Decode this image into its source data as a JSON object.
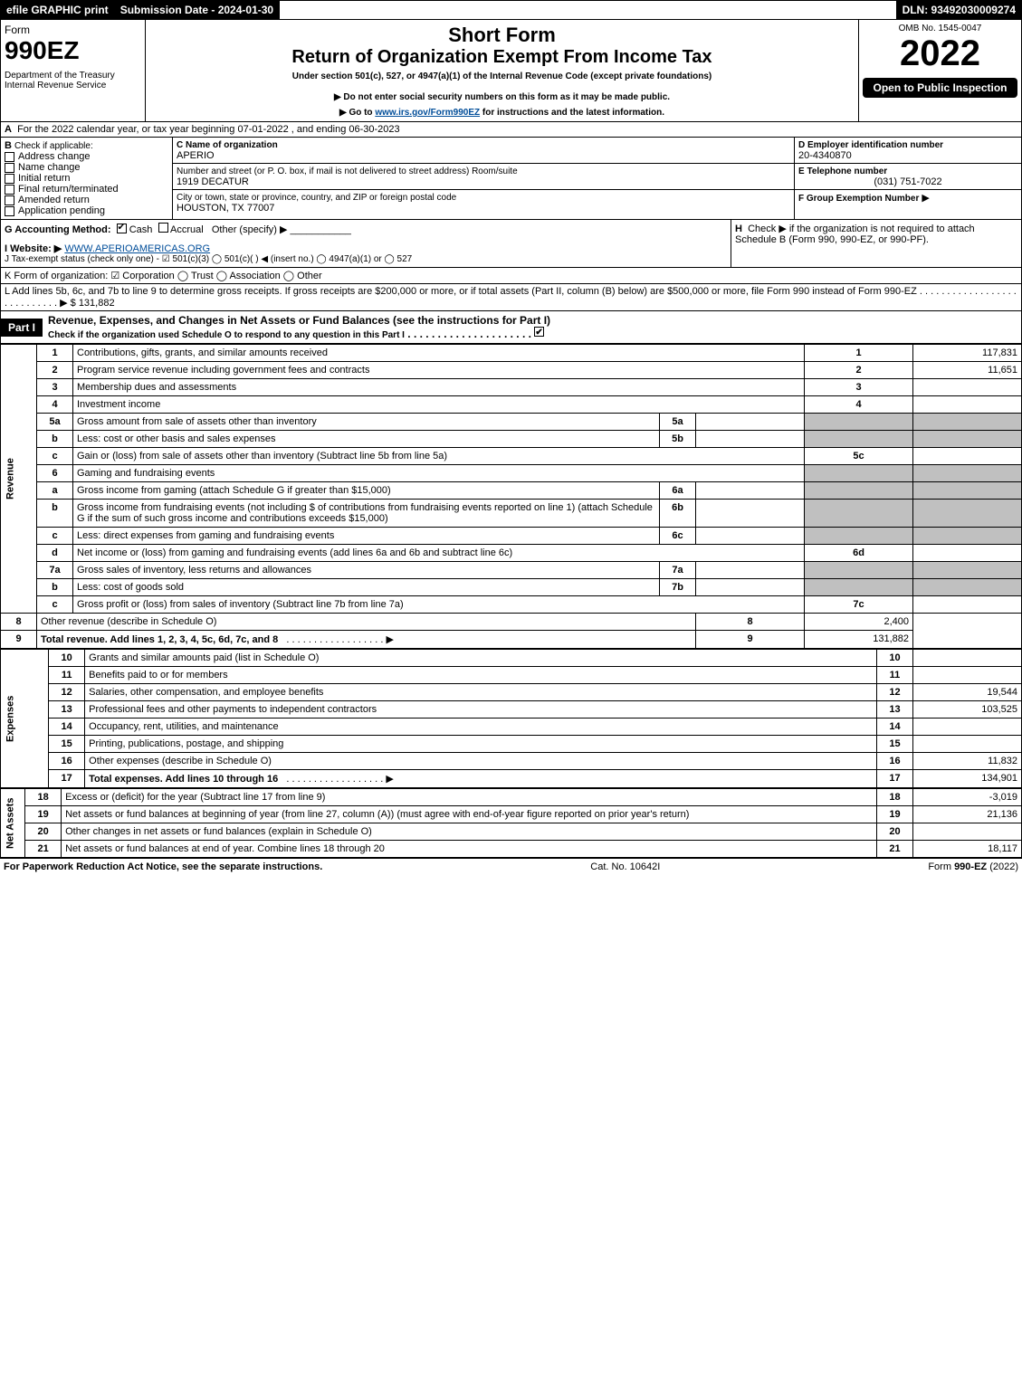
{
  "tophdr": {
    "efile": "efile GRAPHIC print",
    "subdate_label": "Submission Date - 2024-01-30",
    "dln": "DLN: 93492030009274"
  },
  "formhead": {
    "form_word": "Form",
    "form_no": "990EZ",
    "dept": "Department of the Treasury",
    "irs": "Internal Revenue Service",
    "title1": "Short Form",
    "title2": "Return of Organization Exempt From Income Tax",
    "subtitle": "Under section 501(c), 527, or 4947(a)(1) of the Internal Revenue Code (except private foundations)",
    "note1": "Do not enter social security numbers on this form as it may be made public.",
    "note2_pre": "Go to ",
    "note2_link": "www.irs.gov/Form990EZ",
    "note2_post": " for instructions and the latest information.",
    "omb": "OMB No. 1545-0047",
    "year": "2022",
    "open": "Open to Public Inspection"
  },
  "A": {
    "text": "For the 2022 calendar year, or tax year beginning 07-01-2022 , and ending 06-30-2023"
  },
  "B": {
    "label": "Check if applicable:",
    "opts": [
      "Address change",
      "Name change",
      "Initial return",
      "Final return/terminated",
      "Amended return",
      "Application pending"
    ]
  },
  "C": {
    "name_lbl": "C Name of organization",
    "name": "APERIO",
    "addr_lbl": "Number and street (or P. O. box, if mail is not delivered to street address)     Room/suite",
    "addr": "1919 DECATUR",
    "city_lbl": "City or town, state or province, country, and ZIP or foreign postal code",
    "city": "HOUSTON, TX  77007"
  },
  "DEF": {
    "d_lbl": "D Employer identification number",
    "d": "20-4340870",
    "e_lbl": "E Telephone number",
    "e": "(031) 751-7022",
    "f_lbl": "F Group Exemption Number",
    "f_arrow": "▶"
  },
  "G": {
    "lbl": "G Accounting Method:",
    "cash": "Cash",
    "accrual": "Accrual",
    "other": "Other (specify)"
  },
  "H": {
    "txt": "Check ▶      if the organization is not required to attach Schedule B (Form 990, 990-EZ, or 990-PF)."
  },
  "I": {
    "lbl": "I Website: ▶",
    "val": "WWW.APERIOAMERICAS.ORG"
  },
  "J": {
    "txt": "J Tax-exempt status (check only one) -  ☑ 501(c)(3)  ◯ 501(c)(  ) ◀ (insert no.)  ◯ 4947(a)(1) or  ◯ 527"
  },
  "K": {
    "txt": "K Form of organization:   ☑ Corporation   ◯ Trust   ◯ Association   ◯ Other"
  },
  "L": {
    "txt": "L Add lines 5b, 6c, and 7b to line 9 to determine gross receipts. If gross receipts are $200,000 or more, or if total assets (Part II, column (B) below) are $500,000 or more, file Form 990 instead of Form 990-EZ",
    "amt": "$ 131,882"
  },
  "part1": {
    "hdr": "Part I",
    "title": "Revenue, Expenses, and Changes in Net Assets or Fund Balances (see the instructions for Part I)",
    "sub": "Check if the organization used Schedule O to respond to any question in this Part I"
  },
  "sidelabels": {
    "rev": "Revenue",
    "exp": "Expenses",
    "na": "Net Assets"
  },
  "lines": [
    {
      "n": "1",
      "d": "Contributions, gifts, grants, and similar amounts received",
      "l": "1",
      "a": "117,831"
    },
    {
      "n": "2",
      "d": "Program service revenue including government fees and contracts",
      "l": "2",
      "a": "11,651"
    },
    {
      "n": "3",
      "d": "Membership dues and assessments",
      "l": "3",
      "a": ""
    },
    {
      "n": "4",
      "d": "Investment income",
      "l": "4",
      "a": ""
    },
    {
      "n": "5a",
      "d": "Gross amount from sale of assets other than inventory",
      "sl": "5a",
      "sa": ""
    },
    {
      "n": "b",
      "d": "Less: cost or other basis and sales expenses",
      "sl": "5b",
      "sa": ""
    },
    {
      "n": "c",
      "d": "Gain or (loss) from sale of assets other than inventory (Subtract line 5b from line 5a)",
      "l": "5c",
      "a": ""
    },
    {
      "n": "6",
      "d": "Gaming and fundraising events"
    },
    {
      "n": "a",
      "d": "Gross income from gaming (attach Schedule G if greater than $15,000)",
      "sl": "6a",
      "sa": ""
    },
    {
      "n": "b",
      "d": "Gross income from fundraising events (not including $                  of contributions from fundraising events reported on line 1) (attach Schedule G if the sum of such gross income and contributions exceeds $15,000)",
      "sl": "6b",
      "sa": ""
    },
    {
      "n": "c",
      "d": "Less: direct expenses from gaming and fundraising events",
      "sl": "6c",
      "sa": ""
    },
    {
      "n": "d",
      "d": "Net income or (loss) from gaming and fundraising events (add lines 6a and 6b and subtract line 6c)",
      "l": "6d",
      "a": ""
    },
    {
      "n": "7a",
      "d": "Gross sales of inventory, less returns and allowances",
      "sl": "7a",
      "sa": ""
    },
    {
      "n": "b",
      "d": "Less: cost of goods sold",
      "sl": "7b",
      "sa": ""
    },
    {
      "n": "c",
      "d": "Gross profit or (loss) from sales of inventory (Subtract line 7b from line 7a)",
      "l": "7c",
      "a": ""
    },
    {
      "n": "8",
      "d": "Other revenue (describe in Schedule O)",
      "l": "8",
      "a": "2,400"
    },
    {
      "n": "9",
      "d": "Total revenue. Add lines 1, 2, 3, 4, 5c, 6d, 7c, and 8",
      "l": "9",
      "a": "131,882",
      "bold": true,
      "arrow": true
    }
  ],
  "explines": [
    {
      "n": "10",
      "d": "Grants and similar amounts paid (list in Schedule O)",
      "l": "10",
      "a": ""
    },
    {
      "n": "11",
      "d": "Benefits paid to or for members",
      "l": "11",
      "a": ""
    },
    {
      "n": "12",
      "d": "Salaries, other compensation, and employee benefits",
      "l": "12",
      "a": "19,544"
    },
    {
      "n": "13",
      "d": "Professional fees and other payments to independent contractors",
      "l": "13",
      "a": "103,525"
    },
    {
      "n": "14",
      "d": "Occupancy, rent, utilities, and maintenance",
      "l": "14",
      "a": ""
    },
    {
      "n": "15",
      "d": "Printing, publications, postage, and shipping",
      "l": "15",
      "a": ""
    },
    {
      "n": "16",
      "d": "Other expenses (describe in Schedule O)",
      "l": "16",
      "a": "11,832"
    },
    {
      "n": "17",
      "d": "Total expenses. Add lines 10 through 16",
      "l": "17",
      "a": "134,901",
      "bold": true,
      "arrow": true
    }
  ],
  "nalines": [
    {
      "n": "18",
      "d": "Excess or (deficit) for the year (Subtract line 17 from line 9)",
      "l": "18",
      "a": "-3,019"
    },
    {
      "n": "19",
      "d": "Net assets or fund balances at beginning of year (from line 27, column (A)) (must agree with end-of-year figure reported on prior year's return)",
      "l": "19",
      "a": "21,136"
    },
    {
      "n": "20",
      "d": "Other changes in net assets or fund balances (explain in Schedule O)",
      "l": "20",
      "a": ""
    },
    {
      "n": "21",
      "d": "Net assets or fund balances at end of year. Combine lines 18 through 20",
      "l": "21",
      "a": "18,117"
    }
  ],
  "footer": {
    "left": "For Paperwork Reduction Act Notice, see the separate instructions.",
    "mid": "Cat. No. 10642I",
    "right": "Form 990-EZ (2022)"
  }
}
